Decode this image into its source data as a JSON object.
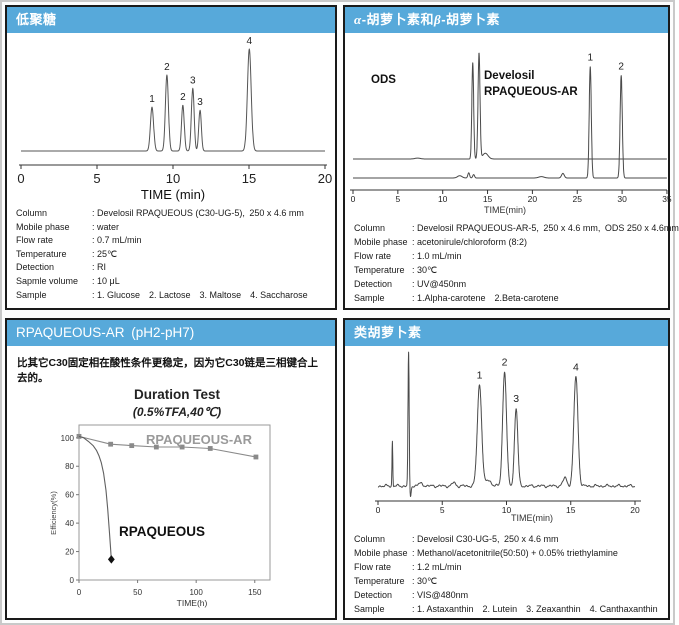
{
  "page": {
    "accent_color": "#57a9da",
    "panel_border_color": "#1a1a1a"
  },
  "panels": {
    "oligo": {
      "title": "低聚糖",
      "specs": [
        {
          "label": "Column",
          "value": ": Develosil RPAQUEOUS (C30-UG-5), 250 x 4.6 mm"
        },
        {
          "label": "Mobile phase",
          "value": ": water"
        },
        {
          "label": "Flow rate",
          "value": ": 0.7 mL/min"
        },
        {
          "label": "Temperature",
          "value": ": 25℃"
        },
        {
          "label": "Detection",
          "value": ": RI"
        },
        {
          "label": "Sapmle volume",
          "value": ": 10 μL"
        },
        {
          "label": "Sample",
          "value": ": 1. Glucose 2. Lactose 3. Maltose 4. Saccharose"
        }
      ]
    },
    "carotene": {
      "title_alpha": "α",
      "title_mid": "-胡萝卜素和",
      "title_beta": "β",
      "title_tail": "-胡萝卜素",
      "specs": [
        {
          "label": "Column",
          "value": ": Develosil RPAQUEOUS-AR-5, 250 x 4.6 mm, ODS 250 x 4.6mm"
        },
        {
          "label": "Mobile phase",
          "value": ": acetonirule/chloroform (8:2)"
        },
        {
          "label": "Flow rate",
          "value": ": 1.0 mL/min"
        },
        {
          "label": "Temperature",
          "value": ": 30℃"
        },
        {
          "label": "Detection",
          "value": ": UV@450nm"
        },
        {
          "label": "Sample",
          "value": ": 1.Alpha-carotene 2.Beta-carotene"
        }
      ]
    },
    "duration": {
      "title": "RPAQUEOUS-AR (pH2-pH7)",
      "note": "比其它C30固定相在酸性条件更稳定，因为它C30链是三相键合上去的。"
    },
    "carotenoid": {
      "title": "类胡萝卜素",
      "specs": [
        {
          "label": "Column",
          "value": ": Develosil C30-UG-5, 250 x 4.6 mm"
        },
        {
          "label": "Mobile phase",
          "value": ": Methanol/acetonitrile(50:50) + 0.05% triethylamine"
        },
        {
          "label": "Flow rate",
          "value": ": 1.2 mL/min"
        },
        {
          "label": "Temperature",
          "value": ": 30℃"
        },
        {
          "label": "Detection",
          "value": ": VIS@480nm"
        },
        {
          "label": "Sample",
          "value": ": 1. Astaxanthin 2. Lutein 3. Zeaxanthin 4. Canthaxanthin"
        }
      ]
    }
  },
  "chart_data": [
    {
      "id": "oligosaccharides",
      "type": "line",
      "subtype": "chromatogram",
      "xlabel": "TIME (min)",
      "xlim": [
        0,
        20
      ],
      "xticks": [
        0,
        5,
        10,
        15,
        20
      ],
      "peaks": [
        {
          "t": 8.62,
          "h": 0.43,
          "s": 0.105,
          "label": "1"
        },
        {
          "t": 9.6,
          "h": 0.745,
          "s": 0.1,
          "label": "2"
        },
        {
          "t": 10.65,
          "h": 0.45,
          "s": 0.09,
          "label": "2"
        },
        {
          "t": 11.3,
          "h": 0.615,
          "s": 0.09,
          "label": "3"
        },
        {
          "t": 11.78,
          "h": 0.4,
          "s": 0.085,
          "label": "3"
        },
        {
          "t": 15.02,
          "h": 1.0,
          "s": 0.125,
          "label": "4"
        }
      ]
    },
    {
      "id": "carotene-comparison",
      "type": "line",
      "subtype": "chromatogram",
      "xlabel": "TIME(min)",
      "xlim": [
        0,
        35
      ],
      "xticks": [
        0,
        5,
        10,
        15,
        20,
        25,
        30,
        35
      ],
      "series": [
        {
          "name": "ODS",
          "peaks": [
            {
              "t": 7.2,
              "h": 0.008,
              "s": 0.3
            },
            {
              "t": 13.35,
              "h": 0.84,
              "s": 0.1
            },
            {
              "t": 14.05,
              "h": 0.92,
              "s": 0.11
            },
            {
              "t": 14.75,
              "h": 0.05,
              "s": 0.3
            }
          ]
        },
        {
          "name": "Develosil RPAQUEOUS-AR",
          "name_lines": [
            "Develosil",
            "RPAQUEOUS-AR"
          ],
          "peaks": [
            {
              "t": 11.9,
              "h": 0.02,
              "s": 0.25
            },
            {
              "t": 12.9,
              "h": 0.045,
              "s": 0.1
            },
            {
              "t": 13.45,
              "h": 0.03,
              "s": 0.1
            },
            {
              "t": 21.0,
              "h": 0.012,
              "s": 0.3
            },
            {
              "t": 23.4,
              "h": 0.04,
              "s": 0.15
            },
            {
              "t": 26.45,
              "h": 0.97,
              "s": 0.115,
              "label": "1"
            },
            {
              "t": 29.9,
              "h": 0.89,
              "s": 0.12,
              "label": "2"
            }
          ]
        }
      ]
    },
    {
      "id": "duration-test",
      "type": "line",
      "title": "Duration Test",
      "subtitle": "(0.5%TFA,40℃)",
      "xlabel": "TIME(h)",
      "ylabel": "Efficiency(%)",
      "xlim": [
        0,
        163
      ],
      "ylim": [
        0,
        109
      ],
      "xticks": [
        0,
        50,
        100,
        150
      ],
      "yticks": [
        0,
        20,
        40,
        60,
        80,
        100
      ],
      "series": [
        {
          "name": "RPAQUEOUS-AR",
          "marker": "square",
          "color": "#8a8a8a",
          "points": [
            [
              0,
              101
            ],
            [
              27,
              95.5
            ],
            [
              45,
              94.5
            ],
            [
              66,
              93.5
            ],
            [
              88,
              93.5
            ],
            [
              112,
              92.5
            ],
            [
              151,
              86.5
            ]
          ]
        },
        {
          "name": "RPAQUEOUS",
          "marker": "diamond-last",
          "color": "#606060",
          "points": [
            [
              0,
              101
            ],
            [
              4,
              100
            ],
            [
              8,
              97.5
            ],
            [
              12,
              94.5
            ],
            [
              15,
              91
            ],
            [
              17,
              87.5
            ],
            [
              19,
              82.5
            ],
            [
              21,
              75
            ],
            [
              23,
              63
            ],
            [
              24.5,
              50
            ],
            [
              26,
              33
            ],
            [
              27,
              22
            ],
            [
              27.6,
              14.5
            ]
          ]
        }
      ]
    },
    {
      "id": "carotenoids",
      "type": "line",
      "subtype": "chromatogram",
      "xlabel": "TIME(min)",
      "xlim": [
        0,
        20
      ],
      "xticks": [
        0,
        5,
        10,
        15,
        20
      ],
      "noise": true,
      "peaks": [
        {
          "t": 1.12,
          "h": 0.38,
          "s": 0.03
        },
        {
          "t": 2.38,
          "h": 1.13,
          "s": 0.045
        },
        {
          "t": 2.52,
          "h": -0.1,
          "s": 0.05
        },
        {
          "t": 3.3,
          "h": 0.02,
          "s": 0.2
        },
        {
          "t": 5.9,
          "h": 0.03,
          "s": 0.12
        },
        {
          "t": 7.9,
          "h": 0.86,
          "s": 0.17,
          "label": "1"
        },
        {
          "t": 8.6,
          "h": 0.05,
          "s": 0.2
        },
        {
          "t": 9.85,
          "h": 0.97,
          "s": 0.15,
          "label": "2"
        },
        {
          "t": 10.75,
          "h": 0.66,
          "s": 0.13,
          "label": "3"
        },
        {
          "t": 14.55,
          "h": 0.07,
          "s": 0.15
        },
        {
          "t": 15.4,
          "h": 0.93,
          "s": 0.16,
          "label": "4"
        }
      ]
    }
  ]
}
